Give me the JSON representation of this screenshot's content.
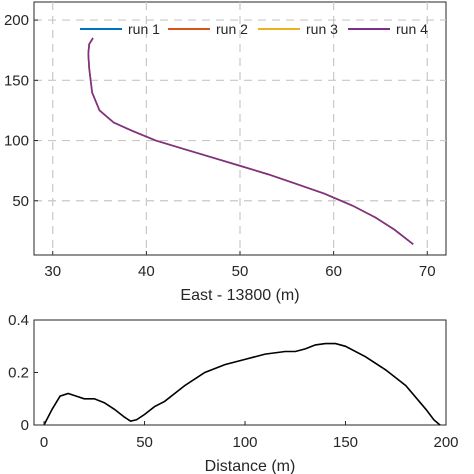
{
  "chart_data": [
    {
      "type": "line",
      "title": "",
      "xlabel": "East - 13800 (m)",
      "ylabel": "",
      "xlim": [
        28,
        72
      ],
      "ylim": [
        5,
        215
      ],
      "xticks": [
        30,
        40,
        50,
        60,
        70
      ],
      "yticks": [
        50,
        100,
        150,
        200
      ],
      "grid": true,
      "grid_style": "dashed",
      "legend_position": "top",
      "series": [
        {
          "name": "run 1",
          "color": "#0072BD",
          "x": [
            34.3,
            33.9,
            33.8,
            33.9,
            34.2,
            35.0,
            36.5,
            38.5,
            41.0,
            44.0,
            47.0,
            50.0,
            53.0,
            56.0,
            59.0,
            62.0,
            64.5,
            66.5,
            68.5
          ],
          "y": [
            185,
            180,
            172,
            160,
            140,
            125,
            115,
            108,
            100,
            93,
            86,
            79,
            72,
            64,
            56,
            46,
            36,
            26,
            14
          ]
        },
        {
          "name": "run 2",
          "color": "#D95319",
          "x": [
            34.3,
            33.9,
            33.8,
            33.9,
            34.2,
            35.0,
            36.5,
            38.5,
            41.0,
            44.0,
            47.0,
            50.0,
            53.0,
            56.0,
            59.0,
            62.0,
            64.5,
            66.5,
            68.5
          ],
          "y": [
            185,
            180,
            172,
            160,
            140,
            125,
            115,
            108,
            100,
            93,
            86,
            79,
            72,
            64,
            56,
            46,
            36,
            26,
            14
          ]
        },
        {
          "name": "run 3",
          "color": "#EDB120",
          "x": [
            34.3,
            33.9,
            33.8,
            33.9,
            34.2,
            35.0,
            36.5,
            38.5,
            41.0,
            44.0,
            47.0,
            50.0,
            53.0,
            56.0,
            59.0,
            62.0,
            64.5,
            66.5,
            68.5
          ],
          "y": [
            185,
            180,
            172,
            160,
            140,
            125,
            115,
            108,
            100,
            93,
            86,
            79,
            72,
            64,
            56,
            46,
            36,
            26,
            14
          ]
        },
        {
          "name": "run 4",
          "color": "#7E2F8E",
          "x": [
            34.3,
            33.9,
            33.8,
            33.9,
            34.2,
            35.0,
            36.5,
            38.5,
            41.0,
            44.0,
            47.0,
            50.0,
            53.0,
            56.0,
            59.0,
            62.0,
            64.5,
            66.5,
            68.5
          ],
          "y": [
            185,
            180,
            172,
            160,
            140,
            125,
            115,
            108,
            100,
            93,
            86,
            79,
            72,
            64,
            56,
            46,
            36,
            26,
            14
          ]
        }
      ]
    },
    {
      "type": "line",
      "title": "",
      "xlabel": "Distance (m)",
      "ylabel": "",
      "xlim": [
        -5,
        200
      ],
      "ylim": [
        0,
        0.4
      ],
      "xticks": [
        0,
        50,
        100,
        150,
        200
      ],
      "xtick_labels": [
        "0",
        "50",
        "100",
        "150",
        "200"
      ],
      "yticks": [
        0,
        0.2,
        0.4
      ],
      "ytick_labels": [
        "0",
        "0.2",
        "0.4"
      ],
      "grid": false,
      "series": [
        {
          "color": "#000000",
          "x": [
            0,
            4,
            8,
            12,
            16,
            20,
            25,
            30,
            35,
            40,
            43,
            46,
            50,
            55,
            60,
            70,
            80,
            90,
            100,
            110,
            120,
            125,
            130,
            135,
            140,
            145,
            150,
            160,
            170,
            180,
            190,
            194,
            197
          ],
          "y": [
            0.0,
            0.06,
            0.11,
            0.12,
            0.11,
            0.1,
            0.1,
            0.085,
            0.06,
            0.03,
            0.015,
            0.02,
            0.04,
            0.07,
            0.09,
            0.15,
            0.2,
            0.23,
            0.25,
            0.27,
            0.28,
            0.28,
            0.29,
            0.305,
            0.31,
            0.31,
            0.3,
            0.26,
            0.21,
            0.15,
            0.06,
            0.02,
            0.0
          ]
        }
      ]
    }
  ]
}
